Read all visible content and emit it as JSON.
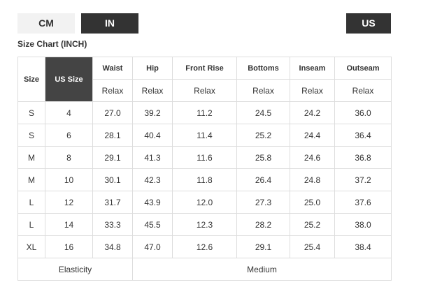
{
  "unit_tabs": [
    "CM",
    "IN"
  ],
  "region_tab": "US",
  "title": "Size Chart (INCH)",
  "table": {
    "size_header": "Size",
    "us_size_header": "US Size",
    "measurements": [
      {
        "name": "Waist",
        "fit": "Relax"
      },
      {
        "name": "Hip",
        "fit": "Relax"
      },
      {
        "name": "Front Rise",
        "fit": "Relax"
      },
      {
        "name": "Bottoms",
        "fit": "Relax"
      },
      {
        "name": "Inseam",
        "fit": "Relax"
      },
      {
        "name": "Outseam",
        "fit": "Relax"
      }
    ],
    "rows": [
      [
        "S",
        "4",
        "27.0",
        "39.2",
        "11.2",
        "24.5",
        "24.2",
        "36.0"
      ],
      [
        "S",
        "6",
        "28.1",
        "40.4",
        "11.4",
        "25.2",
        "24.4",
        "36.4"
      ],
      [
        "M",
        "8",
        "29.1",
        "41.3",
        "11.6",
        "25.8",
        "24.6",
        "36.8"
      ],
      [
        "M",
        "10",
        "30.1",
        "42.3",
        "11.8",
        "26.4",
        "24.8",
        "37.2"
      ],
      [
        "L",
        "12",
        "31.7",
        "43.9",
        "12.0",
        "27.3",
        "25.0",
        "37.6"
      ],
      [
        "L",
        "14",
        "33.3",
        "45.5",
        "12.3",
        "28.2",
        "25.2",
        "38.0"
      ],
      [
        "XL",
        "16",
        "34.8",
        "47.0",
        "12.6",
        "29.1",
        "25.4",
        "38.4"
      ]
    ],
    "footer": {
      "label": "Elasticity",
      "value": "Medium"
    }
  }
}
